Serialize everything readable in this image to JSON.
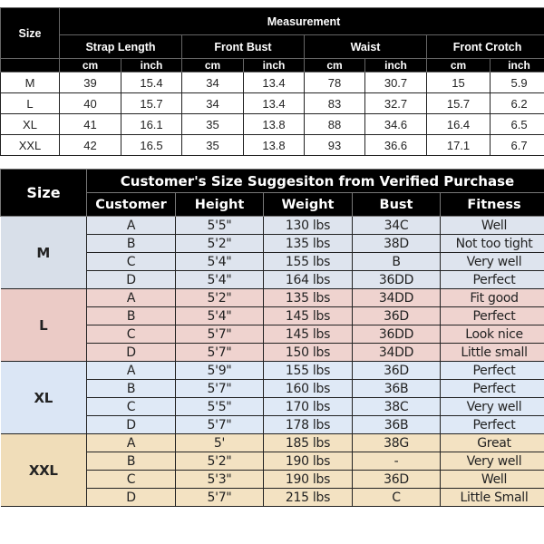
{
  "measurement_table": {
    "size_header": "Size",
    "title": "Measurement",
    "groups": [
      "Strap Length",
      "Front Bust",
      "Waist",
      "Front Crotch"
    ],
    "units": [
      "cm",
      "inch"
    ],
    "rows": [
      {
        "size": "M",
        "values": [
          "39",
          "15.4",
          "34",
          "13.4",
          "78",
          "30.7",
          "15",
          "5.9"
        ]
      },
      {
        "size": "L",
        "values": [
          "40",
          "15.7",
          "34",
          "13.4",
          "83",
          "32.7",
          "15.7",
          "6.2"
        ]
      },
      {
        "size": "XL",
        "values": [
          "41",
          "16.1",
          "35",
          "13.8",
          "88",
          "34.6",
          "16.4",
          "6.5"
        ]
      },
      {
        "size": "XXL",
        "values": [
          "42",
          "16.5",
          "35",
          "13.8",
          "93",
          "36.6",
          "17.1",
          "6.7"
        ]
      }
    ]
  },
  "suggestion_table": {
    "size_header": "Size",
    "title": "Customer's Size Suggesiton from Verified Purchase",
    "columns": [
      "Customer",
      "Height",
      "Weight",
      "Bust",
      "Fitness"
    ],
    "group_colors": {
      "M": "#dee4ee",
      "L": "#efd3cf",
      "XL": "#dfe9f6",
      "XXL": "#f3e2c2"
    },
    "groups": [
      {
        "size": "M",
        "rows": [
          [
            "A",
            "5'5\"",
            "130 lbs",
            "34C",
            "Well"
          ],
          [
            "B",
            "5'2\"",
            "135 lbs",
            "38D",
            "Not too tight"
          ],
          [
            "C",
            "5'4\"",
            "155 lbs",
            "B",
            "Very well"
          ],
          [
            "D",
            "5'4\"",
            "164 lbs",
            "36DD",
            "Perfect"
          ]
        ]
      },
      {
        "size": "L",
        "rows": [
          [
            "A",
            "5'2\"",
            "135 lbs",
            "34DD",
            "Fit good"
          ],
          [
            "B",
            "5'4\"",
            "145 lbs",
            "36D",
            "Perfect"
          ],
          [
            "C",
            "5'7\"",
            "145 lbs",
            "36DD",
            "Look nice"
          ],
          [
            "D",
            "5'7\"",
            "150 lbs",
            "34DD",
            "Little small"
          ]
        ]
      },
      {
        "size": "XL",
        "rows": [
          [
            "A",
            "5'9\"",
            "155 lbs",
            "36D",
            "Perfect"
          ],
          [
            "B",
            "5'7\"",
            "160 lbs",
            "36B",
            "Perfect"
          ],
          [
            "C",
            "5'5\"",
            "170 lbs",
            "38C",
            "Very well"
          ],
          [
            "D",
            "5'7\"",
            "178 lbs",
            "36B",
            "Perfect"
          ]
        ]
      },
      {
        "size": "XXL",
        "rows": [
          [
            "A",
            "5'",
            "185 lbs",
            "38G",
            "Great"
          ],
          [
            "B",
            "5'2\"",
            "190 lbs",
            "-",
            "Very well"
          ],
          [
            "C",
            "5'3\"",
            "190 lbs",
            "36D",
            "Well"
          ],
          [
            "D",
            "5'7\"",
            "215 lbs",
            "C",
            "Little Small"
          ]
        ]
      }
    ]
  }
}
